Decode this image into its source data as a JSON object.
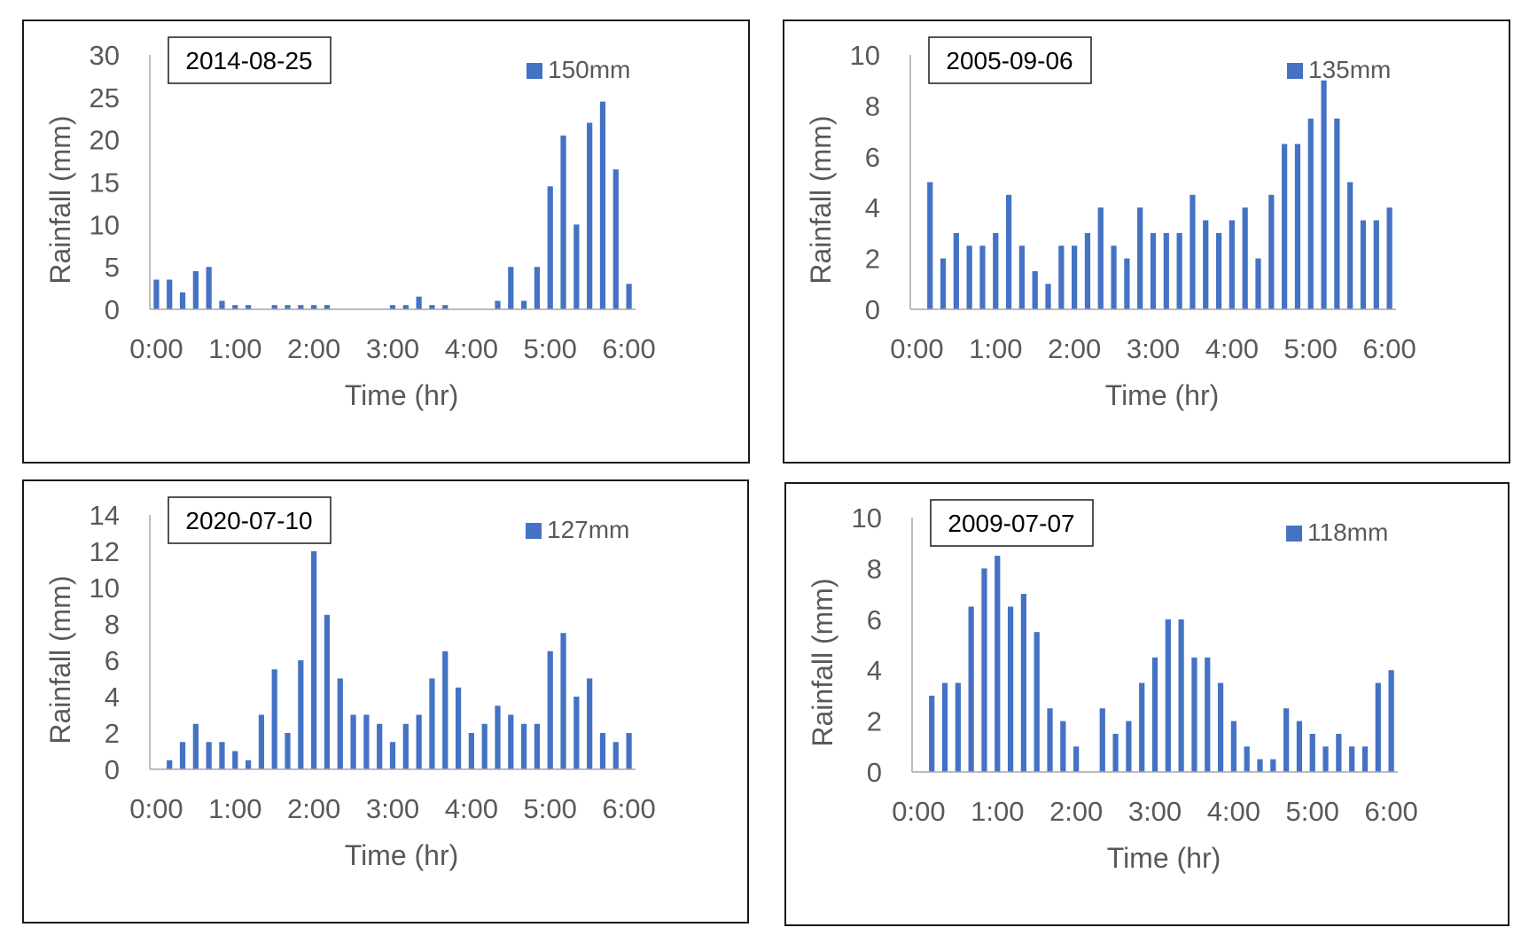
{
  "colors": {
    "bar": "#4472C4",
    "axis": "#a6a6a6",
    "text": "#595959",
    "frame": "#1a1a1a"
  },
  "chart_data": [
    {
      "type": "bar",
      "title": "2014-08-25",
      "legend": "150mm",
      "xlabel": "Time (hr)",
      "ylabel": "Rainfall (mm)",
      "ylim": [
        0,
        30
      ],
      "yticks": [
        "0",
        "5",
        "10",
        "15",
        "20",
        "25",
        "30"
      ],
      "xticks": [
        "0:00",
        "1:00",
        "2:00",
        "3:00",
        "4:00",
        "5:00",
        "6:00"
      ],
      "interval_minutes": 10,
      "values": [
        3.5,
        3.5,
        2,
        4.5,
        5,
        1,
        0.5,
        0.5,
        0,
        0.5,
        0.5,
        0.5,
        0.5,
        0.5,
        0,
        0,
        0,
        0,
        0.5,
        0.5,
        1.5,
        0.5,
        0.5,
        0,
        0,
        0,
        1,
        5,
        1,
        5,
        14.5,
        20.5,
        10,
        22,
        24.5,
        16.5,
        3
      ]
    },
    {
      "type": "bar",
      "title": "2005-09-06",
      "legend": "135mm",
      "xlabel": "Time (hr)",
      "ylabel": "Rainfall (mm)",
      "ylim": [
        0,
        10
      ],
      "yticks": [
        "0",
        "2",
        "4",
        "6",
        "8",
        "10"
      ],
      "xticks": [
        "0:00",
        "1:00",
        "2:00",
        "3:00",
        "4:00",
        "5:00",
        "6:00"
      ],
      "interval_minutes": 10,
      "values": [
        0,
        5,
        2,
        3,
        2.5,
        2.5,
        3,
        4.5,
        2.5,
        1.5,
        1,
        2.5,
        2.5,
        3,
        4,
        2.5,
        2,
        4,
        3,
        3,
        3,
        4.5,
        3.5,
        3,
        3.5,
        4,
        2,
        4.5,
        6.5,
        6.5,
        7.5,
        9,
        7.5,
        5,
        3.5,
        3.5,
        4
      ]
    },
    {
      "type": "bar",
      "title": "2020-07-10",
      "legend": "127mm",
      "xlabel": "Time (hr)",
      "ylabel": "Rainfall (mm)",
      "ylim": [
        0,
        14
      ],
      "yticks": [
        "0",
        "2",
        "4",
        "6",
        "8",
        "10",
        "12",
        "14"
      ],
      "xticks": [
        "0:00",
        "1:00",
        "2:00",
        "3:00",
        "4:00",
        "5:00",
        "6:00"
      ],
      "interval_minutes": 10,
      "values": [
        0,
        0.5,
        1.5,
        2.5,
        1.5,
        1.5,
        1,
        0.5,
        3,
        5.5,
        2,
        6,
        12,
        8.5,
        5,
        3,
        3,
        2.5,
        1.5,
        2.5,
        3,
        5,
        6.5,
        4.5,
        2,
        2.5,
        3.5,
        3,
        2.5,
        2.5,
        6.5,
        7.5,
        4,
        5,
        2,
        1.5,
        2
      ]
    },
    {
      "type": "bar",
      "title": "2009-07-07",
      "legend": "118mm",
      "xlabel": "Time (hr)",
      "ylabel": "Rainfall (mm)",
      "ylim": [
        0,
        10
      ],
      "yticks": [
        "0",
        "2",
        "4",
        "6",
        "8",
        "10"
      ],
      "xticks": [
        "0:00",
        "1:00",
        "2:00",
        "3:00",
        "4:00",
        "5:00",
        "6:00"
      ],
      "interval_minutes": 10,
      "values": [
        0,
        3,
        3.5,
        3.5,
        6.5,
        8,
        8.5,
        6.5,
        7,
        5.5,
        2.5,
        2,
        1,
        0,
        2.5,
        1.5,
        2,
        3.5,
        4.5,
        6,
        6,
        4.5,
        4.5,
        3.5,
        2,
        1,
        0.5,
        0.5,
        2.5,
        2,
        1.5,
        1,
        1.5,
        1,
        1,
        3.5,
        4
      ]
    }
  ]
}
